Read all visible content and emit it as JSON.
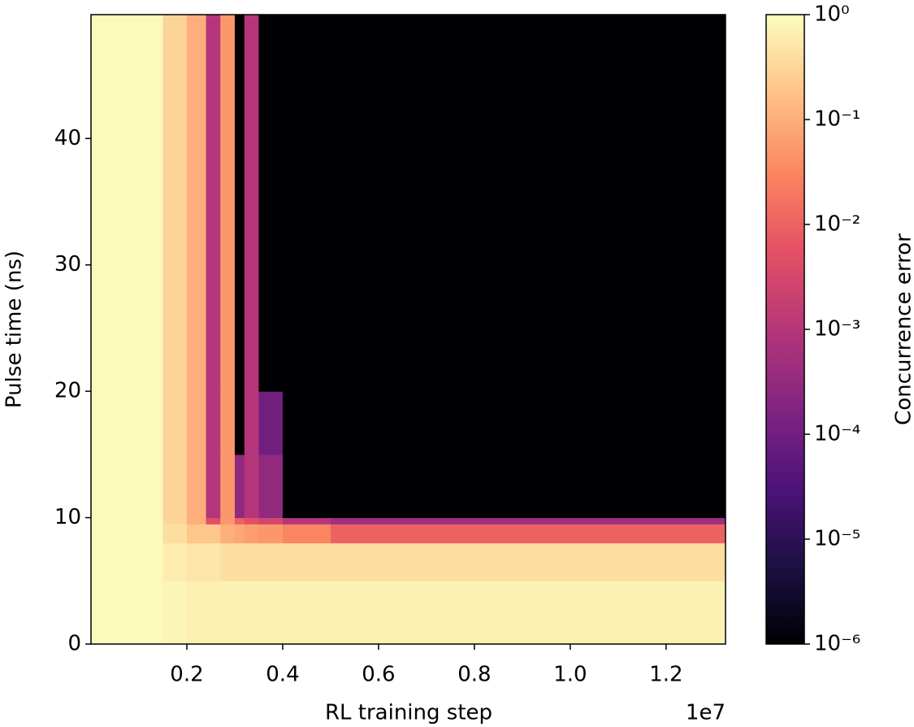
{
  "chart_data": {
    "type": "heatmap",
    "xlabel": "RL training step",
    "ylabel": "Pulse time (ns)",
    "x_offset_label": "1e7",
    "colorbar_label": "Concurrence error",
    "x_edges": [
      0,
      1500000,
      2000000,
      2400000,
      2700000,
      3000000,
      3200000,
      3500000,
      4000000,
      5000000,
      13240000
    ],
    "y_edges": [
      0,
      5,
      8,
      9.5,
      10,
      15,
      20,
      49.8
    ],
    "z": [
      [
        0.9,
        0.8,
        0.7,
        0.7,
        0.7,
        0.7,
        0.7,
        0.7,
        0.7,
        0.7
      ],
      [
        0.9,
        0.6,
        0.5,
        0.5,
        0.4,
        0.4,
        0.4,
        0.4,
        0.4,
        0.4
      ],
      [
        0.9,
        0.4,
        0.2,
        0.2,
        0.1,
        0.08,
        0.06,
        0.05,
        0.03,
        0.01
      ],
      [
        0.9,
        0.3,
        0.1,
        0.005,
        0.05,
        0.01,
        0.005,
        0.003,
        0.001,
        0.0005
      ],
      [
        0.9,
        0.3,
        0.1,
        0.001,
        0.05,
        0.0003,
        0.001,
        0.0003,
        1e-06,
        1e-06
      ],
      [
        0.9,
        0.3,
        0.1,
        0.001,
        0.05,
        1e-06,
        0.001,
        0.0001,
        1e-06,
        1e-06
      ],
      [
        0.9,
        0.3,
        0.1,
        0.001,
        0.05,
        1e-06,
        0.001,
        1e-06,
        1e-06,
        1e-06
      ]
    ],
    "xlim": [
      0,
      13240000
    ],
    "ylim": [
      0,
      49.8
    ],
    "xticks": [
      {
        "value": 2000000,
        "label": "0.2"
      },
      {
        "value": 4000000,
        "label": "0.4"
      },
      {
        "value": 6000000,
        "label": "0.6"
      },
      {
        "value": 8000000,
        "label": "0.8"
      },
      {
        "value": 10000000,
        "label": "1.0"
      },
      {
        "value": 12000000,
        "label": "1.2"
      }
    ],
    "yticks": [
      0,
      10,
      20,
      30,
      40
    ],
    "color_scale": "log",
    "clim": [
      1e-06,
      1
    ],
    "cbar_ticks": [
      {
        "value": 1,
        "label": "10⁰"
      },
      {
        "value": 0.1,
        "label": "10⁻¹"
      },
      {
        "value": 0.01,
        "label": "10⁻²"
      },
      {
        "value": 0.001,
        "label": "10⁻³"
      },
      {
        "value": 0.0001,
        "label": "10⁻⁴"
      },
      {
        "value": 1e-05,
        "label": "10⁻⁵"
      },
      {
        "value": 1e-06,
        "label": "10⁻⁶"
      }
    ],
    "colormap": [
      "#000004",
      "#1c1044",
      "#4f127b",
      "#812581",
      "#b5367a",
      "#e55064",
      "#fb8761",
      "#fec287",
      "#fcfdbf"
    ]
  }
}
